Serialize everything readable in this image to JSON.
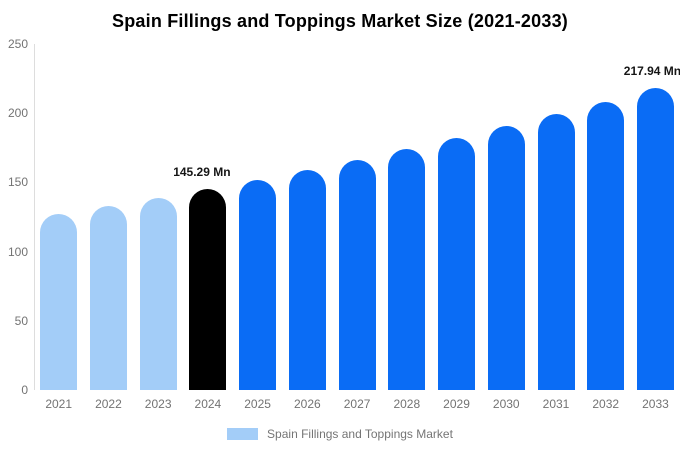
{
  "title": "Spain Fillings and Toppings Market Size (2021-2033)",
  "legend": {
    "label": "Spain Fillings and Toppings Market",
    "swatch_color": "#a3cdf8"
  },
  "colors": {
    "historical_bar": "#a3cdf8",
    "highlight_bar": "#000000",
    "forecast_bar": "#0a6cf5",
    "axis_line": "#dddddd",
    "tick_text": "#737373",
    "annotation_text": "#151515",
    "title_text": "#000000",
    "background": "#ffffff"
  },
  "chart_data": {
    "type": "bar",
    "title": "Spain Fillings and Toppings Market Size (2021-2033)",
    "unit": "Mn",
    "categories": [
      "2021",
      "2022",
      "2023",
      "2024",
      "2025",
      "2026",
      "2027",
      "2028",
      "2029",
      "2030",
      "2031",
      "2032",
      "2033"
    ],
    "values": [
      126.9,
      132.8,
      138.9,
      145.29,
      152.0,
      159.0,
      166.3,
      174.0,
      182.0,
      190.4,
      199.2,
      208.4,
      217.94
    ],
    "bar_colors": [
      "#a3cdf8",
      "#a3cdf8",
      "#a3cdf8",
      "#000000",
      "#0a6cf5",
      "#0a6cf5",
      "#0a6cf5",
      "#0a6cf5",
      "#0a6cf5",
      "#0a6cf5",
      "#0a6cf5",
      "#0a6cf5",
      "#0a6cf5"
    ],
    "ylim": [
      0,
      250
    ],
    "yticks": [
      0,
      50,
      100,
      150,
      200,
      250
    ],
    "grid": false,
    "xlabel": "",
    "ylabel": "",
    "legend_position": "bottom",
    "legend_entries": [
      "Spain Fillings and Toppings Market"
    ],
    "annotations": [
      {
        "category": "2024",
        "text": "145.29 Mn",
        "dx": -6
      },
      {
        "category": "2033",
        "text": "217.94 Mn",
        "dx": -3
      }
    ]
  }
}
